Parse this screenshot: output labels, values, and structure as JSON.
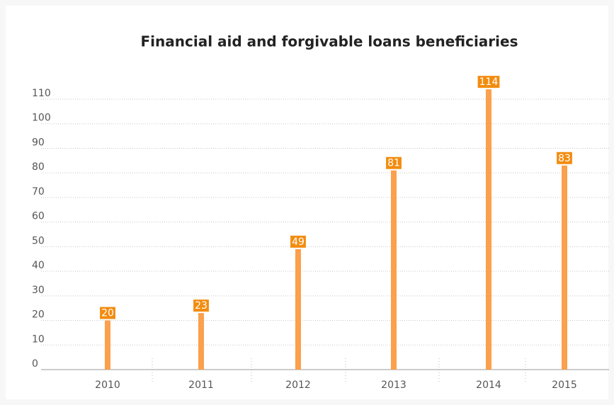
{
  "chart_data": {
    "type": "bar",
    "title": "Financial aid and forgivable loans beneficiaries",
    "categories": [
      "2010",
      "2011",
      "2012",
      "2013",
      "2014",
      "2015"
    ],
    "values": [
      20,
      23,
      49,
      81,
      114,
      83
    ],
    "color": "#fba04c",
    "label_color": "#f28c0f",
    "ylim": [
      0,
      110
    ],
    "yticks": [
      0,
      10,
      20,
      30,
      40,
      50,
      60,
      70,
      80,
      90,
      100,
      110
    ],
    "grid": true
  }
}
